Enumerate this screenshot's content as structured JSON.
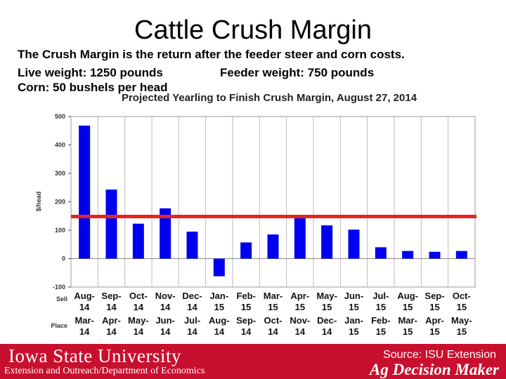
{
  "slide": {
    "title": "Cattle Crush Margin",
    "description": "The Crush Margin is the return after the feeder steer and corn costs.",
    "live_weight": "Live weight:  1250 pounds",
    "feeder_weight": "Feeder weight:  750 pounds",
    "corn": "Corn:  50 bushels per head"
  },
  "chart_data": {
    "type": "bar",
    "title": "Projected Yearling to Finish Crush Margin, August 27, 2014",
    "ylabel": "$/head",
    "ylim": [
      -100,
      500
    ],
    "yticks": [
      -100,
      0,
      100,
      200,
      300,
      400,
      500
    ],
    "row_labels": {
      "sell": "Sell",
      "place": "Place"
    },
    "sell": [
      "Aug-14",
      "Sep-14",
      "Oct-14",
      "Nov-14",
      "Dec-14",
      "Jan-15",
      "Feb-15",
      "Mar-15",
      "Apr-15",
      "May-15",
      "Jun-15",
      "Jul-15",
      "Aug-15",
      "Sep-15",
      "Oct-15"
    ],
    "place": [
      "Mar-14",
      "Apr-14",
      "May-14",
      "Jun-14",
      "Jul-14",
      "Aug-14",
      "Sep-14",
      "Oct-14",
      "Nov-14",
      "Dec-14",
      "Jan-15",
      "Feb-15",
      "Mar-15",
      "Apr-15",
      "May-15"
    ],
    "values": [
      468,
      243,
      123,
      177,
      95,
      -62,
      57,
      85,
      152,
      117,
      102,
      40,
      27,
      24,
      27
    ],
    "reference_line": 148,
    "colors": {
      "bar": "#0000ee",
      "reference": "#e8231f",
      "grid": "#bbbbbb"
    }
  },
  "footer": {
    "university": "Iowa State University",
    "extension_line": "Extension and Outreach/Department of Economics",
    "source": "Source: ISU Extension",
    "brand": "Ag Decision Maker",
    "color": "#c8102e"
  }
}
